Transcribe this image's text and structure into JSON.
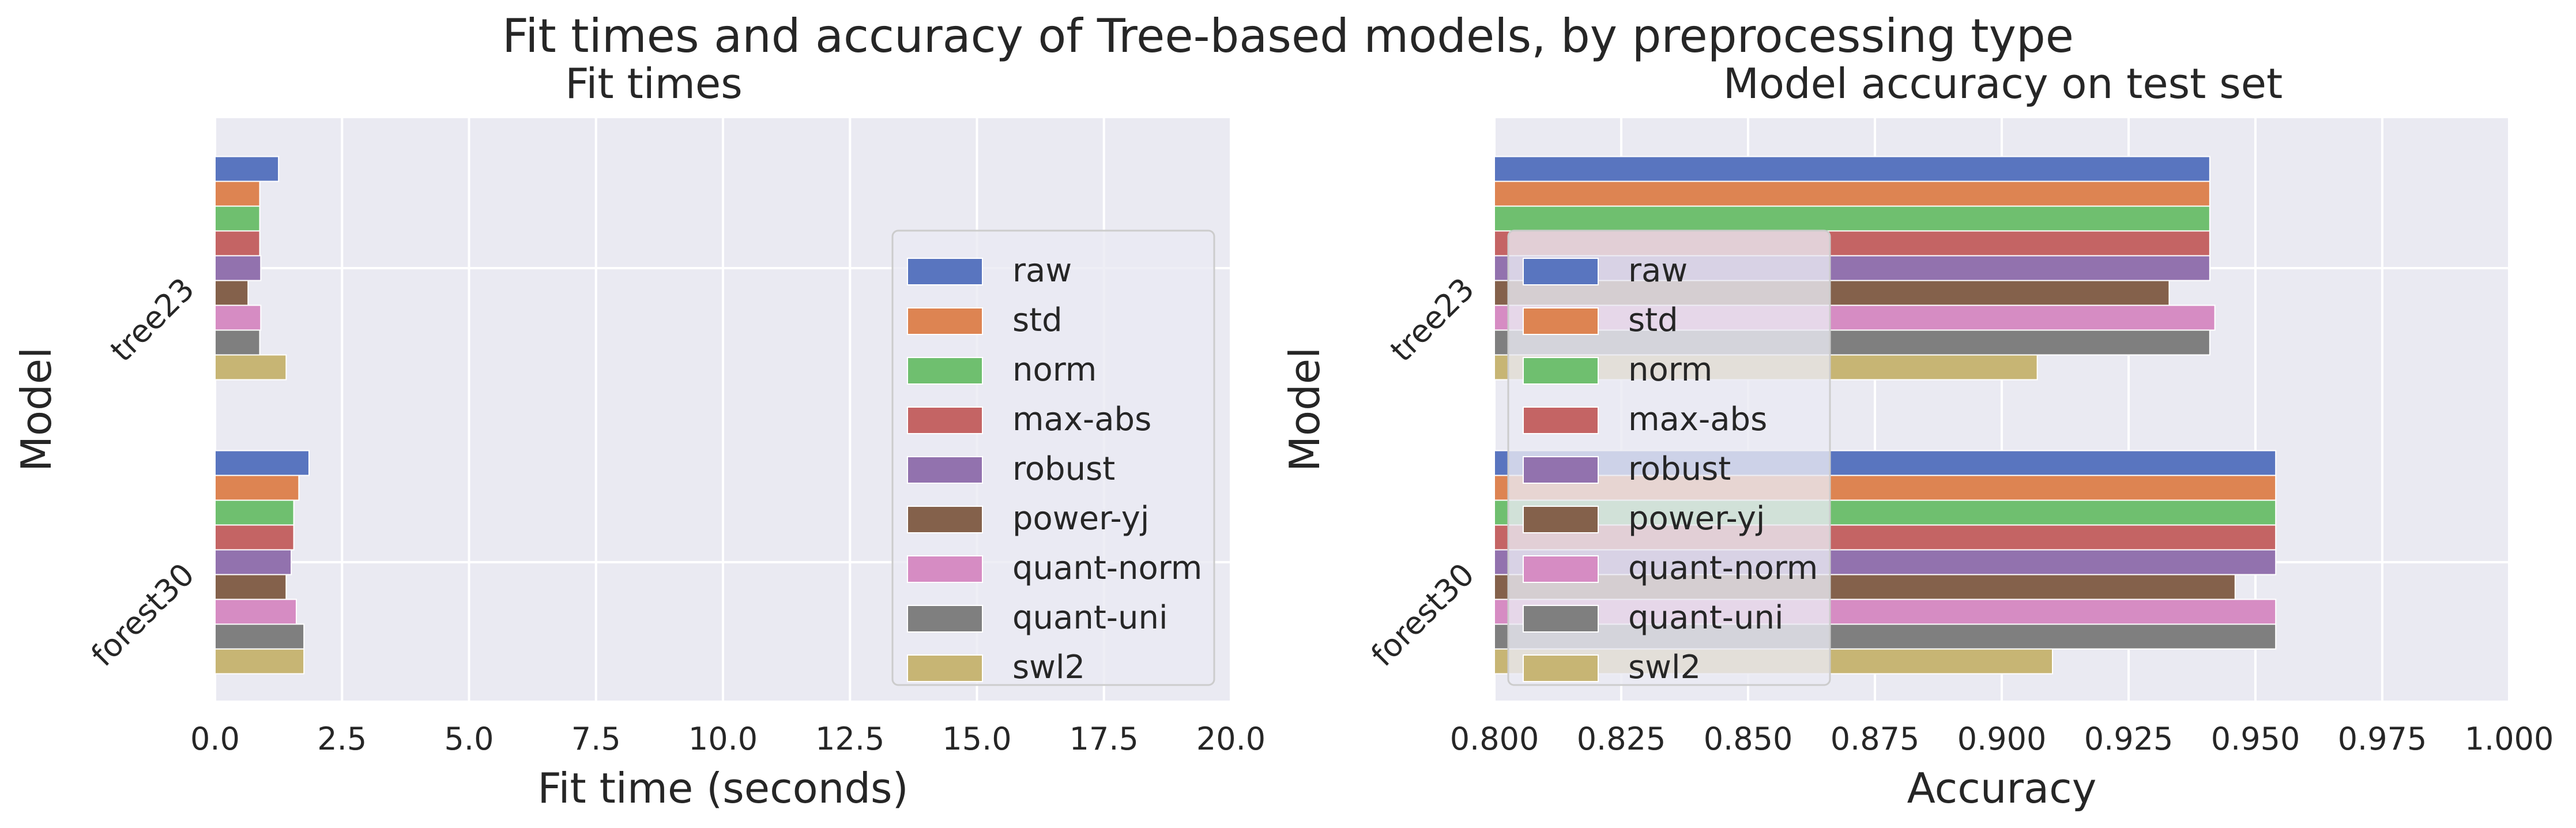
{
  "figure": {
    "title": "Fit times and accuracy of Tree-based models, by preprocessing type"
  },
  "legend_labels": [
    "raw",
    "std",
    "norm",
    "max-abs",
    "robust",
    "power-yj",
    "quant-norm",
    "quant-uni",
    "swl2"
  ],
  "colors": [
    "#5975bf",
    "#dd8452",
    "#6fbf6f",
    "#c46464",
    "#9272ae",
    "#84614b",
    "#d68cc3",
    "#7f7f7f",
    "#c7b574"
  ],
  "chart_data": [
    {
      "type": "bar",
      "orientation": "horizontal",
      "title": "Fit times",
      "xlabel": "Fit time (seconds)",
      "ylabel": "Model",
      "categories": [
        "tree23",
        "forest30"
      ],
      "xlim": [
        0,
        20
      ],
      "xticks": [
        "0.0",
        "2.5",
        "5.0",
        "7.5",
        "10.0",
        "12.5",
        "15.0",
        "17.5",
        "20.0"
      ],
      "grid": true,
      "legend_position": "center-right",
      "series": [
        {
          "name": "raw",
          "values": [
            1.25,
            1.85
          ]
        },
        {
          "name": "std",
          "values": [
            0.88,
            1.65
          ]
        },
        {
          "name": "norm",
          "values": [
            0.88,
            1.55
          ]
        },
        {
          "name": "max-abs",
          "values": [
            0.88,
            1.55
          ]
        },
        {
          "name": "robust",
          "values": [
            0.9,
            1.5
          ]
        },
        {
          "name": "power-yj",
          "values": [
            0.65,
            1.4
          ]
        },
        {
          "name": "quant-norm",
          "values": [
            0.9,
            1.6
          ]
        },
        {
          "name": "quant-uni",
          "values": [
            0.88,
            1.75
          ]
        },
        {
          "name": "swl2",
          "values": [
            1.4,
            1.75
          ]
        }
      ]
    },
    {
      "type": "bar",
      "orientation": "horizontal",
      "title": "Model accuracy on test set",
      "xlabel": "Accuracy",
      "ylabel": "Model",
      "categories": [
        "tree23",
        "forest30"
      ],
      "xlim": [
        0.8,
        1.0
      ],
      "xticks": [
        "0.800",
        "0.825",
        "0.850",
        "0.875",
        "0.900",
        "0.925",
        "0.950",
        "0.975",
        "1.000"
      ],
      "grid": true,
      "legend_position": "center-left",
      "series": [
        {
          "name": "raw",
          "values": [
            0.941,
            0.954
          ]
        },
        {
          "name": "std",
          "values": [
            0.941,
            0.954
          ]
        },
        {
          "name": "norm",
          "values": [
            0.941,
            0.954
          ]
        },
        {
          "name": "max-abs",
          "values": [
            0.941,
            0.954
          ]
        },
        {
          "name": "robust",
          "values": [
            0.941,
            0.954
          ]
        },
        {
          "name": "power-yj",
          "values": [
            0.933,
            0.946
          ]
        },
        {
          "name": "quant-norm",
          "values": [
            0.942,
            0.954
          ]
        },
        {
          "name": "quant-uni",
          "values": [
            0.941,
            0.954
          ]
        },
        {
          "name": "swl2",
          "values": [
            0.907,
            0.91
          ]
        }
      ]
    }
  ]
}
